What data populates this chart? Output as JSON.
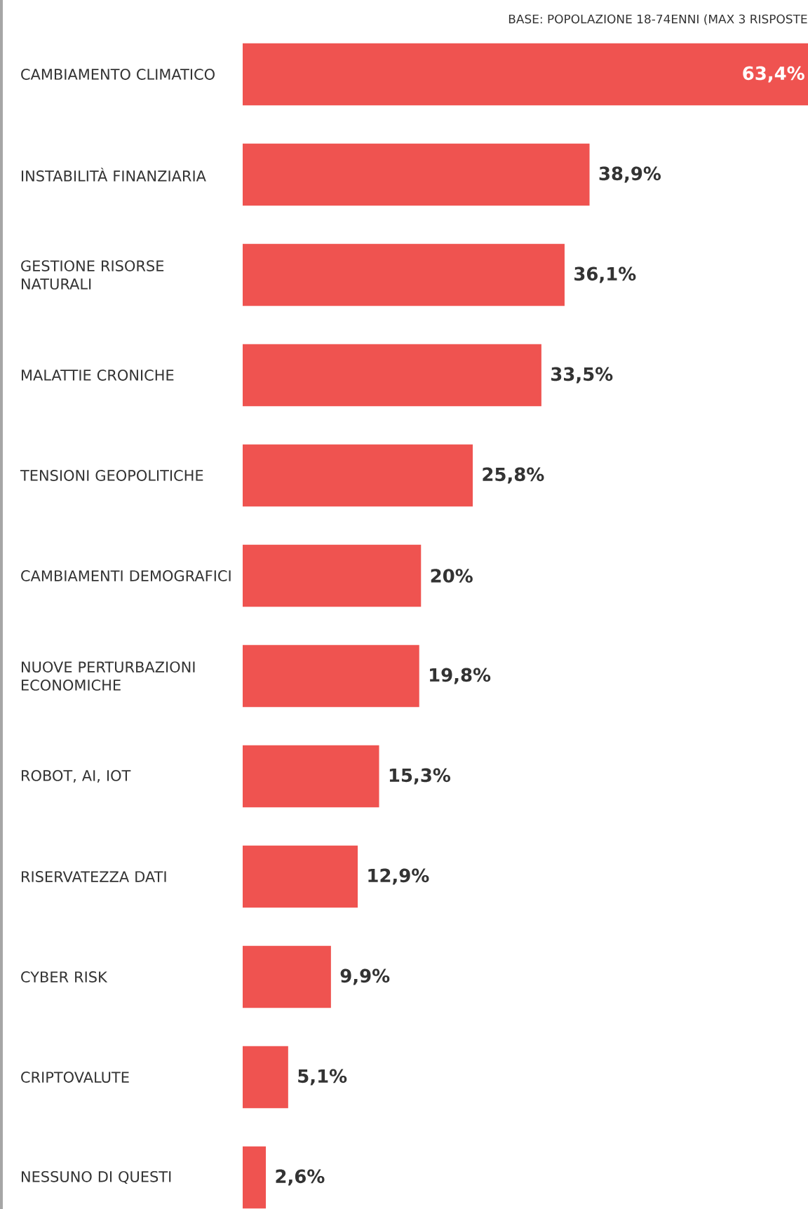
{
  "chart_data": {
    "type": "bar",
    "orientation": "horizontal",
    "subtitle": "BASE: POPOLAZIONE 18-74ENNI (MAX 3 RISPOSTE",
    "categories": [
      "CAMBIAMENTO CLIMATICO",
      "INSTABILITÀ FINANZIARIA",
      "GESTIONE RISORSE NATURALI",
      "MALATTIE CRONICHE",
      "TENSIONI GEOPOLITICHE",
      "CAMBIAMENTI DEMOGRAFICI",
      "NUOVE PERTURBAZIONI ECONOMICHE",
      "ROBOT, AI, IOT",
      "RISERVATEZZA DATI",
      "CYBER RISK",
      "CRIPTOVALUTE",
      "NESSUNO DI QUESTI"
    ],
    "values": [
      63.4,
      38.9,
      36.1,
      33.5,
      25.8,
      20,
      19.8,
      15.3,
      12.9,
      9.9,
      5.1,
      2.6
    ],
    "value_labels": [
      "63,4%",
      "38,9%",
      "36,1%",
      "33,5%",
      "25,8%",
      "20%",
      "19,8%",
      "15,3%",
      "12,9%",
      "9,9%",
      "5,1%",
      "2,6%"
    ],
    "color": "#ef5350"
  }
}
